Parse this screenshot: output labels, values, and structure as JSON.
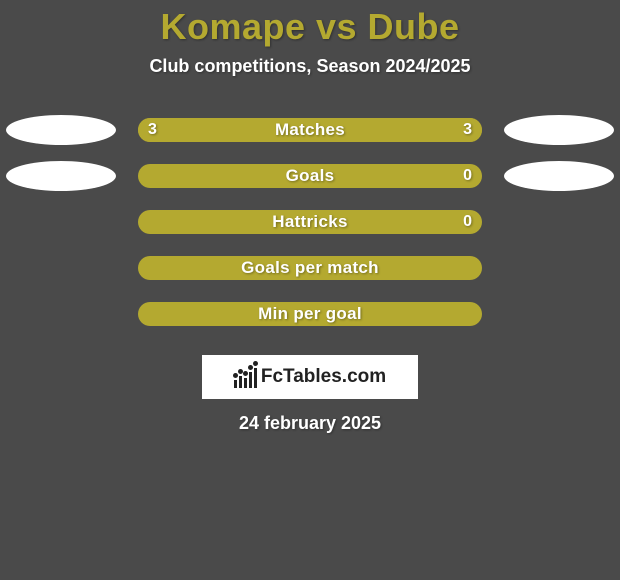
{
  "background_color": "#4a4a4a",
  "title": "Komape vs Dube",
  "title_color": "#b4a930",
  "title_fontsize": 36,
  "subtitle": "Club competitions, Season 2024/2025",
  "subtitle_color": "#ffffff",
  "subtitle_fontsize": 18,
  "bar_track_color": "#b4a930",
  "bar_fill_left_color": "#b4a930",
  "bar_fill_right_color": "#b4a930",
  "bar_text_color": "#ffffff",
  "ellipse_color": "#ffffff",
  "rows": [
    {
      "label": "Matches",
      "left_value": "3",
      "right_value": "3",
      "left_pct": 50,
      "right_pct": 50,
      "show_left_ellipse": true,
      "show_right_ellipse": true
    },
    {
      "label": "Goals",
      "left_value": "",
      "right_value": "0",
      "left_pct": 0,
      "right_pct": 0,
      "show_left_ellipse": true,
      "show_right_ellipse": true
    },
    {
      "label": "Hattricks",
      "left_value": "",
      "right_value": "0",
      "left_pct": 0,
      "right_pct": 0,
      "show_left_ellipse": false,
      "show_right_ellipse": false
    },
    {
      "label": "Goals per match",
      "left_value": "",
      "right_value": "",
      "left_pct": 0,
      "right_pct": 0,
      "show_left_ellipse": false,
      "show_right_ellipse": false
    },
    {
      "label": "Min per goal",
      "left_value": "",
      "right_value": "",
      "left_pct": 0,
      "right_pct": 0,
      "show_left_ellipse": false,
      "show_right_ellipse": false
    }
  ],
  "logo_text": "FcTables.com",
  "date": "24 february 2025",
  "date_color": "#ffffff"
}
